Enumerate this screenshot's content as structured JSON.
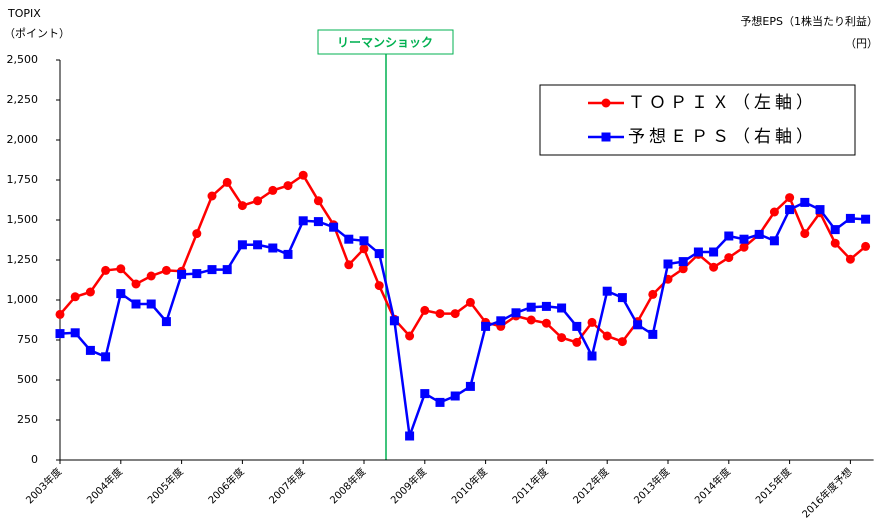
{
  "chart_data": {
    "type": "line",
    "y_title_lines": [
      "TOPIX",
      "（ポイント）"
    ],
    "y2_title_lines": [
      "予想EPS（1株当たり利益）",
      "（円）"
    ],
    "annotation": "リーマンショック",
    "categories": [
      "2003年度",
      null,
      null,
      null,
      "2004年度",
      null,
      null,
      null,
      "2005年度",
      null,
      null,
      null,
      "2006年度",
      null,
      null,
      null,
      "2007年度",
      null,
      null,
      null,
      "2008年度",
      null,
      null,
      null,
      "2009年度",
      null,
      null,
      null,
      "2010年度",
      null,
      null,
      null,
      "2011年度",
      null,
      null,
      null,
      "2012年度",
      null,
      null,
      null,
      "2013年度",
      null,
      null,
      null,
      "2014年度",
      null,
      null,
      null,
      "2015年度",
      null,
      null,
      null,
      "2016年度予想",
      null
    ],
    "ylim": [
      0,
      2500
    ],
    "yticks": [
      0,
      250,
      500,
      750,
      {
        "value": 1000,
        "label": "1,000"
      },
      {
        "value": 1250,
        "label": "1,250"
      },
      {
        "value": 1500,
        "label": "1,500"
      },
      {
        "value": 1750,
        "label": "1,750"
      },
      {
        "value": 2000,
        "label": "2,000"
      },
      {
        "value": 2250,
        "label": "2,250"
      },
      {
        "value": 2500,
        "label": "2,500"
      }
    ],
    "legend_position": "upper right",
    "series": [
      {
        "name": "ＴＯＰＩＸ（左軸）",
        "color": "#ff0000",
        "marker": "circle",
        "values": [
          910,
          1020,
          1050,
          1185,
          1195,
          1100,
          1150,
          1185,
          1180,
          1415,
          1650,
          1735,
          1590,
          1620,
          1685,
          1715,
          1780,
          1620,
          1470,
          1220,
          1320,
          1090,
          880,
          775,
          935,
          915,
          915,
          985,
          860,
          835,
          900,
          875,
          855,
          765,
          735,
          860,
          775,
          740,
          865,
          1035,
          1130,
          1195,
          1285,
          1205,
          1265,
          1330,
          1410,
          1550,
          1640,
          1415,
          1545,
          1355,
          1255,
          1335
        ]
      },
      {
        "name": "予想ＥＰＳ（右軸）",
        "color": "#0000ff",
        "marker": "square",
        "values": [
          790,
          795,
          685,
          645,
          1040,
          975,
          975,
          865,
          1160,
          1165,
          1190,
          1190,
          1345,
          1345,
          1325,
          1285,
          1495,
          1490,
          1455,
          1380,
          1370,
          1290,
          870,
          150,
          415,
          360,
          400,
          460,
          835,
          870,
          920,
          955,
          960,
          950,
          835,
          650,
          1055,
          1015,
          845,
          785,
          1225,
          1240,
          1300,
          1300,
          1400,
          1380,
          1410,
          1370,
          1565,
          1610,
          1565,
          1440,
          1510,
          1505
        ]
      }
    ]
  }
}
